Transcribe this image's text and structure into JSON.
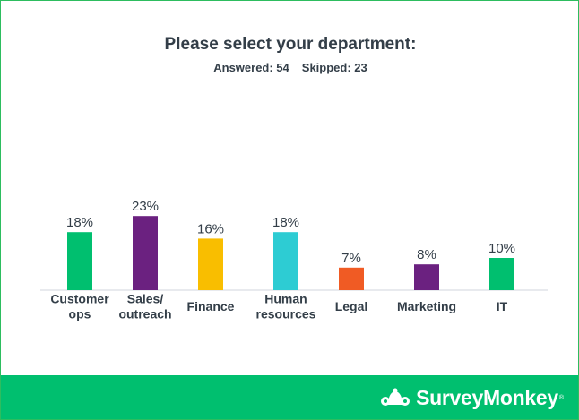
{
  "title": "Please select your department:",
  "answered": "Answered: 54",
  "skipped": "Skipped: 23",
  "brand": "SurveyMonkey",
  "brand_mark": "®",
  "chart_data": {
    "type": "bar",
    "categories": [
      [
        "Customer",
        "ops"
      ],
      [
        "Sales/",
        "outreach"
      ],
      [
        "Finance"
      ],
      [
        "Human",
        "resources"
      ],
      [
        "Legal"
      ],
      [
        "Marketing"
      ],
      [
        "IT"
      ]
    ],
    "values": [
      18,
      23,
      16,
      18,
      7,
      8,
      10
    ],
    "value_labels": [
      "18%",
      "23%",
      "16%",
      "18%",
      "7%",
      "8%",
      "10%"
    ],
    "colors": [
      "#00bf6f",
      "#6b2180",
      "#f9be00",
      "#2dccd3",
      "#f05b24",
      "#6b2180",
      "#00bf6f"
    ],
    "unit": "%",
    "grid": false
  }
}
